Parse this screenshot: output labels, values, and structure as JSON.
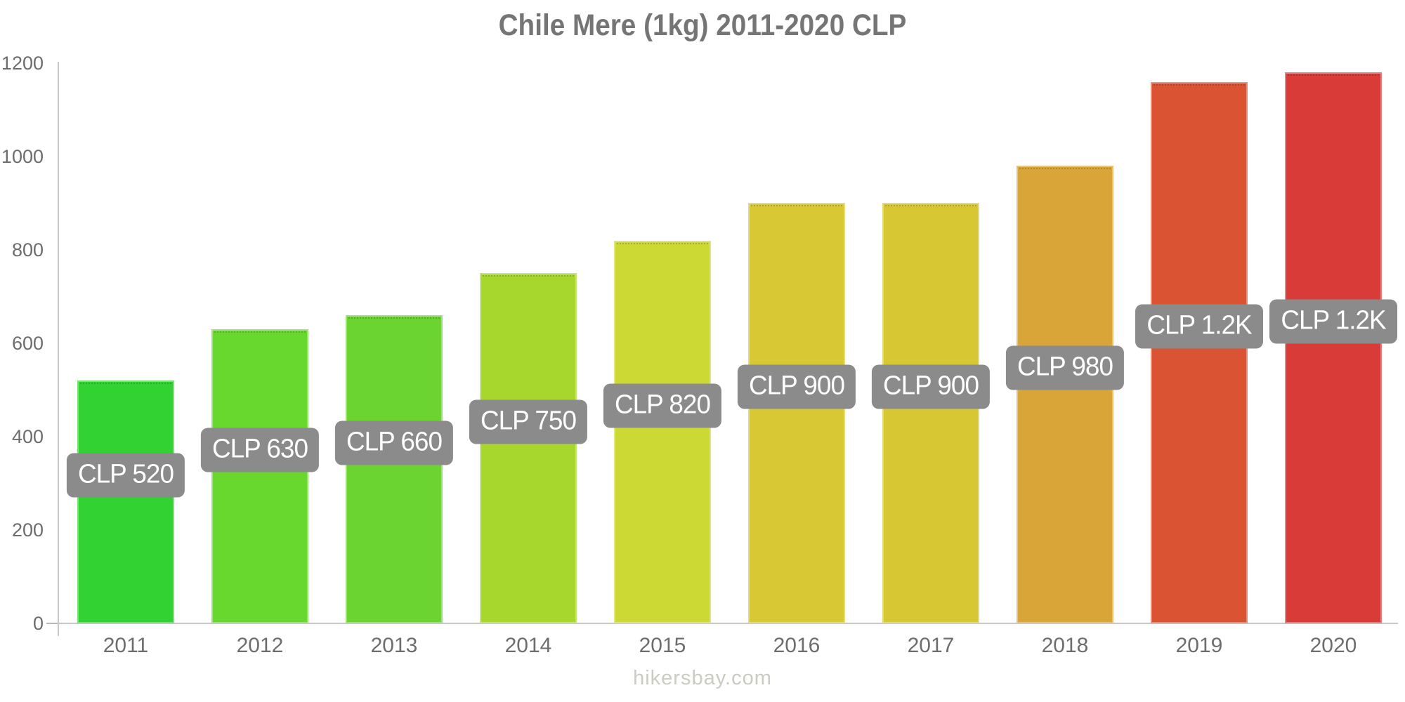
{
  "title": "Chile Mere (1kg) 2011-2020 CLP",
  "footer": "hikersbay.com",
  "colors": {
    "title_text": "#757575",
    "axis_label_text": "#6d6d6d",
    "axis_line": "#c6c6c6",
    "tooltip_bg": "#8b8b8b",
    "tooltip_text": "#ffffff",
    "footer_text": "#cbcbc4",
    "background": "#ffffff"
  },
  "chart_data": {
    "type": "bar",
    "title": "Chile Mere (1kg) 2011-2020 CLP",
    "categories": [
      "2011",
      "2012",
      "2013",
      "2014",
      "2015",
      "2016",
      "2017",
      "2018",
      "2019",
      "2020"
    ],
    "values": [
      520,
      630,
      660,
      750,
      820,
      900,
      900,
      980,
      1160,
      1180
    ],
    "bar_labels": [
      "CLP 520",
      "CLP 630",
      "CLP 660",
      "CLP 750",
      "CLP 820",
      "CLP 900",
      "CLP 900",
      "CLP 980",
      "CLP 1.2K",
      "CLP 1.2K"
    ],
    "bar_colors": [
      "#32d232",
      "#69d82e",
      "#6cd431",
      "#a7d72c",
      "#ccd834",
      "#d8c834",
      "#d7c733",
      "#d9a438",
      "#da5434",
      "#d93b38"
    ],
    "xlabel": "",
    "ylabel": "",
    "ylim": [
      0,
      1200
    ],
    "yticks": [
      0,
      200,
      400,
      600,
      800,
      1000,
      1200
    ],
    "grid": false,
    "legend": false,
    "currency": "CLP"
  }
}
